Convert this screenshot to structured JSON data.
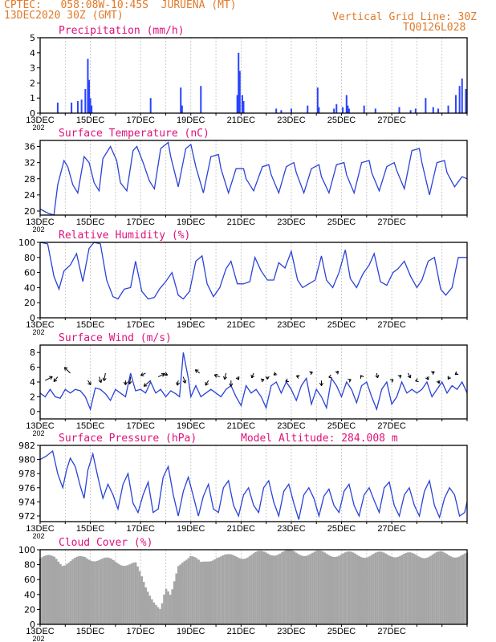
{
  "header": {
    "station": "CPTEC:   058:08W-10:45S  JURUENA (MT)",
    "date": "13DEC2020 30Z (GMT)",
    "grid": "Vertical Grid Line: 30Z",
    "code": "TQ0126L028"
  },
  "colors": {
    "accent": "#e07a2a",
    "title": "#e0107a",
    "line": "#2a43d8",
    "bar": "#2a43ff",
    "cloud": "#a6a6a6"
  },
  "x_ticks": [
    "13DEC",
    "15DEC",
    "17DEC",
    "19DEC",
    "21DEC",
    "23DEC",
    "25DEC",
    "27DEC"
  ],
  "x_year_fragment": "202",
  "chart_data": [
    {
      "type": "bar",
      "title": "Precipitation (mm/h)",
      "ylim": [
        0,
        5
      ],
      "yticks": [
        "0",
        "1",
        "2",
        "3",
        "4",
        "5"
      ],
      "x_unit": "day offset from 13DEC 00Z",
      "x": [
        0.7,
        1.25,
        1.5,
        1.65,
        1.8,
        1.9,
        1.95,
        2.0,
        2.05,
        4.4,
        5.6,
        5.65,
        6.4,
        7.85,
        7.9,
        7.95,
        8.05,
        8.1,
        9.4,
        9.6,
        10.0,
        10.65,
        11.05,
        11.1,
        11.7,
        11.8,
        12.05,
        12.2,
        12.25,
        12.3,
        12.9,
        13.35,
        14.3,
        14.75,
        14.95,
        15.35,
        15.65,
        15.85,
        16.25,
        16.55,
        16.7,
        16.8,
        16.95
      ],
      "values": [
        0.7,
        0.7,
        0.8,
        0.9,
        1.6,
        3.6,
        2.2,
        1.0,
        0.5,
        1.0,
        1.7,
        0.5,
        1.8,
        1.2,
        4.0,
        2.8,
        1.2,
        0.8,
        0.3,
        0.2,
        0.3,
        0.5,
        1.7,
        0.4,
        0.3,
        0.6,
        0.4,
        1.2,
        0.5,
        0.3,
        0.5,
        0.3,
        0.4,
        0.2,
        0.3,
        1.0,
        0.4,
        0.3,
        0.5,
        1.2,
        1.8,
        2.3,
        1.6
      ]
    },
    {
      "type": "line",
      "title": "Surface Temperature (nC)",
      "ylim": [
        19,
        37.5
      ],
      "yticks": [
        "20",
        "24",
        "28",
        "32",
        "36"
      ],
      "x": [
        0.0,
        0.3,
        0.55,
        0.7,
        0.95,
        1.1,
        1.3,
        1.5,
        1.75,
        1.95,
        2.15,
        2.35,
        2.5,
        2.8,
        3.05,
        3.2,
        3.45,
        3.7,
        3.85,
        4.1,
        4.35,
        4.55,
        4.8,
        5.1,
        5.2,
        5.5,
        5.8,
        6.0,
        6.2,
        6.5,
        6.8,
        7.1,
        7.2,
        7.5,
        7.8,
        8.1,
        8.2,
        8.5,
        8.85,
        9.1,
        9.2,
        9.5,
        9.8,
        10.1,
        10.2,
        10.5,
        10.8,
        11.1,
        11.2,
        11.5,
        11.8,
        12.1,
        12.2,
        12.5,
        12.8,
        13.1,
        13.2,
        13.5,
        13.8,
        14.1,
        14.2,
        14.5,
        14.8,
        15.1,
        15.2,
        15.5,
        15.8,
        16.1,
        16.2,
        16.5,
        16.8,
        17.0
      ],
      "values": [
        20.5,
        19.5,
        19.0,
        26.5,
        32.5,
        31.0,
        26.5,
        24.5,
        33.5,
        32.0,
        27.0,
        25.0,
        33.0,
        36.0,
        32.5,
        27.0,
        25.0,
        35.0,
        36.0,
        32.0,
        27.5,
        25.5,
        35.5,
        37.0,
        33.5,
        26.0,
        35.5,
        36.5,
        31.0,
        24.5,
        33.5,
        34.0,
        30.5,
        24.5,
        30.5,
        30.5,
        28.0,
        25.0,
        31.0,
        31.5,
        29.0,
        24.5,
        31.0,
        32.0,
        29.5,
        24.5,
        30.5,
        31.5,
        28.5,
        24.5,
        31.5,
        32.0,
        29.0,
        24.5,
        32.0,
        32.5,
        29.5,
        25.0,
        31.0,
        32.0,
        30.0,
        25.5,
        35.0,
        35.5,
        32.0,
        24.0,
        32.0,
        32.5,
        29.5,
        26.0,
        28.5,
        28.0
      ]
    },
    {
      "type": "line",
      "title": "Relative Humidity (%)",
      "ylim": [
        0,
        100
      ],
      "yticks": [
        "0",
        "20",
        "40",
        "60",
        "80",
        "100"
      ],
      "x": [
        0.0,
        0.3,
        0.55,
        0.75,
        0.95,
        1.2,
        1.45,
        1.7,
        1.95,
        2.15,
        2.4,
        2.65,
        2.9,
        3.1,
        3.35,
        3.6,
        3.8,
        4.05,
        4.3,
        4.55,
        4.75,
        5.0,
        5.25,
        5.5,
        5.7,
        5.95,
        6.2,
        6.45,
        6.65,
        6.9,
        7.15,
        7.4,
        7.6,
        7.85,
        8.1,
        8.35,
        8.55,
        8.8,
        9.05,
        9.3,
        9.5,
        9.75,
        10.0,
        10.25,
        10.45,
        10.7,
        10.95,
        11.2,
        11.4,
        11.65,
        11.9,
        12.15,
        12.35,
        12.6,
        12.85,
        13.1,
        13.3,
        13.55,
        13.8,
        14.05,
        14.25,
        14.5,
        14.75,
        15.0,
        15.2,
        15.45,
        15.7,
        15.95,
        16.15,
        16.4,
        16.65,
        16.9,
        17.0
      ],
      "values": [
        100,
        98,
        55,
        38,
        62,
        70,
        85,
        48,
        92,
        100,
        98,
        50,
        28,
        25,
        38,
        40,
        75,
        35,
        25,
        27,
        38,
        48,
        60,
        30,
        25,
        35,
        75,
        82,
        45,
        28,
        40,
        65,
        75,
        45,
        45,
        48,
        80,
        62,
        50,
        50,
        73,
        66,
        88,
        50,
        40,
        45,
        50,
        82,
        50,
        40,
        60,
        90,
        52,
        40,
        58,
        70,
        85,
        48,
        43,
        60,
        65,
        75,
        55,
        40,
        50,
        75,
        80,
        38,
        30,
        40,
        80,
        80,
        80
      ]
    },
    {
      "type": "line",
      "title": "Surface Wind (m/s)",
      "ylim": [
        -1,
        9
      ],
      "yticks": [
        "0",
        "2",
        "4",
        "6",
        "8"
      ],
      "x": [
        0.0,
        0.2,
        0.4,
        0.6,
        0.8,
        1.0,
        1.2,
        1.4,
        1.6,
        1.8,
        2.0,
        2.2,
        2.4,
        2.6,
        2.8,
        3.0,
        3.2,
        3.4,
        3.6,
        3.8,
        4.0,
        4.2,
        4.4,
        4.6,
        4.8,
        5.0,
        5.2,
        5.4,
        5.55,
        5.7,
        5.9,
        6.0,
        6.2,
        6.4,
        6.6,
        6.8,
        7.0,
        7.2,
        7.4,
        7.6,
        7.8,
        8.0,
        8.2,
        8.4,
        8.6,
        8.8,
        9.0,
        9.2,
        9.4,
        9.6,
        9.8,
        10.0,
        10.2,
        10.4,
        10.6,
        10.8,
        11.0,
        11.2,
        11.4,
        11.6,
        11.8,
        12.0,
        12.2,
        12.4,
        12.6,
        12.8,
        13.0,
        13.2,
        13.4,
        13.6,
        13.8,
        14.0,
        14.2,
        14.4,
        14.6,
        14.8,
        15.0,
        15.2,
        15.4,
        15.6,
        15.8,
        16.0,
        16.2,
        16.4,
        16.6,
        16.8,
        17.0
      ],
      "values": [
        2.5,
        2.0,
        3.0,
        2.0,
        1.8,
        3.0,
        2.5,
        3.0,
        2.8,
        2.0,
        0.3,
        3.2,
        3.0,
        2.4,
        1.5,
        3.0,
        2.5,
        2.0,
        5.2,
        2.8,
        3.0,
        2.5,
        4.0,
        2.5,
        3.0,
        2.0,
        2.8,
        2.4,
        2.0,
        8.0,
        4.5,
        2.0,
        3.5,
        2.0,
        2.5,
        3.0,
        2.5,
        2.0,
        3.0,
        3.5,
        2.0,
        0.8,
        3.5,
        2.5,
        3.0,
        2.0,
        0.5,
        3.5,
        4.0,
        2.5,
        4.0,
        3.0,
        1.5,
        3.5,
        4.5,
        1.0,
        3.0,
        2.0,
        0.5,
        4.5,
        3.5,
        2.0,
        4.0,
        3.0,
        1.2,
        3.5,
        4.0,
        2.0,
        0.3,
        3.0,
        4.0,
        1.0,
        2.0,
        4.0,
        2.5,
        3.0,
        2.5,
        3.0,
        4.0,
        2.0,
        3.0,
        4.0,
        2.5,
        3.5,
        3.0,
        4.0,
        2.5
      ],
      "arrow_x": [
        0.2,
        0.7,
        1.2,
        1.9,
        2.35,
        2.6,
        3.4,
        3.6,
        4.2,
        4.4,
        4.7,
        4.9,
        5.5,
        5.7,
        6.35,
        6.7,
        7.15,
        7.4,
        7.6,
        7.85,
        8.5,
        8.8,
        9.05,
        9.4,
        9.85,
        10.3,
        10.75,
        11.2,
        11.55,
        11.8,
        12.3,
        12.8,
        13.4,
        14.0,
        14.3,
        14.65,
        15.0,
        15.4,
        15.6,
        15.85,
        16.3,
        16.6
      ],
      "arrow_u": [
        1.5,
        -0.8,
        -1.2,
        0.6,
        0.4,
        -0.3,
        0.0,
        -0.2,
        -1.0,
        -1.4,
        1.3,
        0.9,
        -0.2,
        0.4,
        -0.9,
        -0.6,
        -1.1,
        -0.3,
        0.0,
        0.3,
        -0.4,
        0.6,
        0.0,
        -0.5,
        -0.4,
        -0.5,
        0.5,
        0.0,
        -0.3,
        0.4,
        0.4,
        -0.2,
        0.2,
        0.3,
        0.4,
        0.5,
        -0.3,
        0.3,
        0.5,
        0.2,
        -0.3,
        -0.4
      ],
      "arrow_v": [
        0.8,
        -1.0,
        1.2,
        -0.9,
        -1.2,
        -1.6,
        -0.9,
        -1.5,
        -0.5,
        -1.2,
        0.6,
        -0.4,
        -1.0,
        -1.3,
        0.7,
        -1.0,
        0.4,
        -1.3,
        -1.2,
        -0.6,
        -1.0,
        0.2,
        -0.5,
        -0.4,
        -0.2,
        0.2,
        0.2,
        -1.1,
        -0.1,
        0.4,
        0.2,
        0.3,
        -1.0,
        0.2,
        0.3,
        -1.0,
        -0.1,
        -0.6,
        0.3,
        -0.6,
        -0.5,
        -0.3
      ]
    },
    {
      "type": "line",
      "title": "Surface Pressure (hPa)",
      "subtitle": "Model Altitude: 284.008 m",
      "ylim": [
        971.2,
        982
      ],
      "yticks": [
        "972",
        "974",
        "976",
        "978",
        "980",
        "982"
      ],
      "x": [
        0.0,
        0.25,
        0.5,
        0.7,
        0.9,
        1.05,
        1.2,
        1.4,
        1.6,
        1.75,
        1.9,
        2.1,
        2.3,
        2.5,
        2.7,
        2.9,
        3.1,
        3.3,
        3.5,
        3.7,
        3.9,
        4.1,
        4.3,
        4.5,
        4.7,
        4.9,
        5.1,
        5.3,
        5.5,
        5.7,
        5.9,
        6.1,
        6.3,
        6.5,
        6.7,
        6.9,
        7.1,
        7.3,
        7.5,
        7.7,
        7.9,
        8.1,
        8.3,
        8.5,
        8.7,
        8.9,
        9.1,
        9.3,
        9.5,
        9.7,
        9.9,
        10.1,
        10.3,
        10.5,
        10.7,
        10.9,
        11.1,
        11.3,
        11.5,
        11.7,
        11.9,
        12.1,
        12.3,
        12.5,
        12.7,
        12.9,
        13.1,
        13.3,
        13.5,
        13.7,
        13.9,
        14.1,
        14.3,
        14.5,
        14.7,
        14.9,
        15.1,
        15.3,
        15.5,
        15.7,
        15.9,
        16.1,
        16.3,
        16.5,
        16.7,
        16.9,
        17.0
      ],
      "values": [
        980.0,
        980.5,
        981.2,
        978.0,
        976.0,
        978.5,
        980.2,
        979.0,
        976.2,
        974.5,
        978.5,
        980.8,
        977.5,
        974.5,
        976.5,
        975.0,
        973.0,
        976.5,
        978.0,
        973.8,
        972.5,
        975.0,
        976.8,
        972.5,
        973.0,
        977.5,
        979.0,
        975.0,
        972.0,
        975.5,
        977.5,
        974.8,
        972.0,
        974.8,
        976.5,
        973.0,
        972.5,
        976.0,
        977.0,
        973.5,
        972.0,
        975.0,
        976.0,
        973.5,
        972.5,
        976.0,
        977.0,
        974.0,
        972.0,
        975.5,
        976.5,
        973.8,
        971.5,
        975.0,
        976.0,
        974.5,
        972.0,
        974.8,
        975.8,
        973.5,
        972.5,
        975.5,
        976.5,
        973.5,
        972.0,
        975.0,
        976.0,
        974.2,
        972.5,
        976.0,
        976.8,
        973.5,
        972.0,
        975.0,
        976.0,
        973.5,
        972.0,
        975.5,
        977.0,
        973.5,
        971.8,
        974.5,
        976.0,
        975.0,
        972.0,
        972.5,
        974.0
      ]
    },
    {
      "type": "bar",
      "title": "Cloud Cover (%)",
      "ylim": [
        0,
        100
      ],
      "yticks": [
        "0",
        "20",
        "40",
        "60",
        "80",
        "100"
      ],
      "knots_x": [
        0.0,
        0.6,
        0.9,
        1.4,
        1.8,
        2.2,
        2.8,
        3.4,
        3.8,
        4.2,
        4.5,
        4.8,
        5.0,
        5.2,
        5.5,
        5.7,
        6.0,
        6.4,
        7.0,
        7.5,
        8.2,
        9.0,
        10.0,
        11.0,
        12.0,
        13.0,
        14.0,
        15.0,
        16.0,
        17.0
      ],
      "knots_y": [
        88,
        90,
        82,
        86,
        90,
        88,
        85,
        82,
        80,
        50,
        35,
        20,
        45,
        35,
        80,
        88,
        92,
        80,
        92,
        90,
        92,
        96,
        96,
        95,
        94,
        93,
        94,
        92,
        94,
        93
      ]
    }
  ]
}
